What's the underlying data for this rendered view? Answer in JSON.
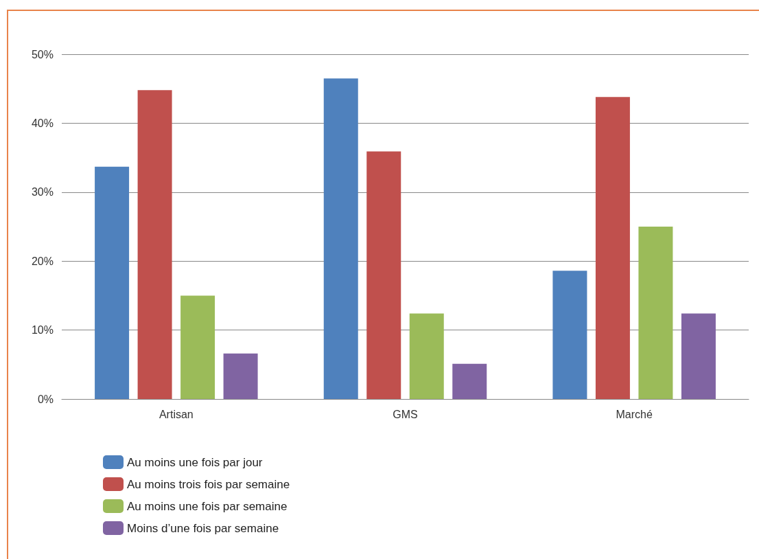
{
  "chart_data": {
    "type": "bar",
    "categories": [
      "Artisan",
      "GMS",
      "Marché"
    ],
    "series": [
      {
        "name": "Au moins une fois par jour",
        "color": "#4f81bd",
        "values": [
          33.7,
          46.5,
          18.6
        ]
      },
      {
        "name": "Au moins trois fois par semaine",
        "color": "#c0504d",
        "values": [
          44.8,
          35.9,
          43.8
        ]
      },
      {
        "name": "Au moins une fois par semaine",
        "color": "#9bbb59",
        "values": [
          15.0,
          12.4,
          25.0
        ]
      },
      {
        "name": "Moins d’une fois par semaine",
        "color": "#8064a2",
        "values": [
          6.6,
          5.1,
          12.4
        ]
      }
    ],
    "ylim": [
      0,
      50
    ],
    "yticks": [
      {
        "value": 0,
        "label": "0%"
      },
      {
        "value": 10,
        "label": "10%"
      },
      {
        "value": 20,
        "label": "20%"
      },
      {
        "value": 30,
        "label": "30%"
      },
      {
        "value": 40,
        "label": "40%"
      },
      {
        "value": 50,
        "label": "50%"
      }
    ],
    "grid": "y",
    "legend": "bottom left"
  }
}
